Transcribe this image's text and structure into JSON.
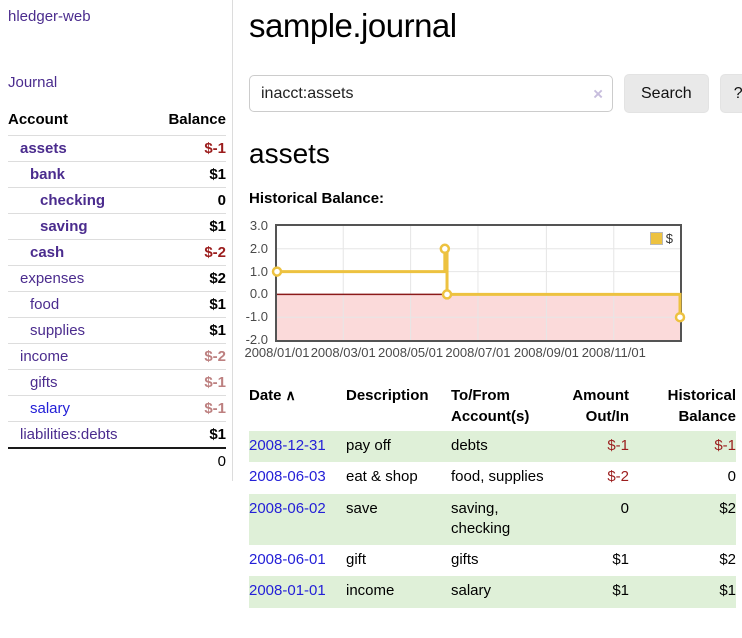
{
  "sidebar": {
    "brand": "hledger-web",
    "journal_link": "Journal",
    "accounts_table": {
      "col_account": "Account",
      "col_balance": "Balance",
      "rows": [
        {
          "name": "assets",
          "balance": "$-1"
        },
        {
          "name": "bank",
          "balance": "$1"
        },
        {
          "name": "checking",
          "balance": "0"
        },
        {
          "name": "saving",
          "balance": "$1"
        },
        {
          "name": "cash",
          "balance": "$-2"
        },
        {
          "name": "expenses",
          "balance": "$2"
        },
        {
          "name": "food",
          "balance": "$1"
        },
        {
          "name": "supplies",
          "balance": "$1"
        },
        {
          "name": "income",
          "balance": "$-2"
        },
        {
          "name": "gifts",
          "balance": "$-1"
        },
        {
          "name": "salary",
          "balance": "$-1"
        },
        {
          "name": "liabilities:debts",
          "balance": "$1"
        }
      ],
      "total": "0"
    }
  },
  "main": {
    "title": "sample.journal",
    "search": {
      "value": "inacct:assets",
      "clear_icon": "×",
      "search_button": "Search",
      "help_button": "?"
    },
    "account_heading": "assets",
    "chart_heading": "Historical Balance:"
  },
  "chart_data": {
    "type": "line",
    "step": true,
    "title": "Historical Balance",
    "series": [
      {
        "name": "$",
        "color": "#edc240",
        "points": [
          [
            "2008-01-01",
            1
          ],
          [
            "2008-06-01",
            2
          ],
          [
            "2008-06-03",
            0
          ],
          [
            "2008-12-31",
            -1
          ]
        ]
      }
    ],
    "x_range": [
      "2008-01-01",
      "2008-12-31"
    ],
    "ylim": [
      -2,
      3
    ],
    "y_ticks": [
      "3.0",
      "2.0",
      "1.0",
      "0.0",
      "-1.0",
      "-2.0"
    ],
    "x_ticks": [
      "2008/01/01",
      "2008/03/01",
      "2008/05/01",
      "2008/07/01",
      "2008/09/01",
      "2008/11/01"
    ],
    "legend": {
      "label": "$",
      "position": "top-right"
    },
    "grid": true,
    "grid_color": "#e6e6e6",
    "negative_fill": "#fbdada",
    "zero_line_color": "#8b1a1a",
    "border_color": "#545454"
  },
  "register": {
    "headers": {
      "date": "Date",
      "sort_icon": "∧",
      "description": "Description",
      "accounts": "To/From Account(s)",
      "amount": "Amount Out/In",
      "balance": "Historical Balance"
    },
    "rows": [
      {
        "date": "2008-12-31",
        "description": "pay off",
        "accounts": "debts",
        "amount": "$-1",
        "balance": "$-1"
      },
      {
        "date": "2008-06-03",
        "description": "eat & shop",
        "accounts": "food, supplies",
        "amount": "$-2",
        "balance": "0"
      },
      {
        "date": "2008-06-02",
        "description": "save",
        "accounts": "saving, checking",
        "amount": "0",
        "balance": "$2"
      },
      {
        "date": "2008-06-01",
        "description": "gift",
        "accounts": "gifts",
        "amount": "$1",
        "balance": "$2"
      },
      {
        "date": "2008-01-01",
        "description": "income",
        "accounts": "salary",
        "amount": "$1",
        "balance": "$1"
      }
    ]
  },
  "colors": {
    "link_purple": "#4b2c8e",
    "link_blue": "#2420d7",
    "negative_strong": "#9b1d1d",
    "negative_faded": "#bd8080",
    "row_stripe_green": "#dff0d8",
    "series_gold": "#edc240",
    "negative_area_pink": "#fbdada",
    "zero_line_red": "#8b1a1a"
  }
}
